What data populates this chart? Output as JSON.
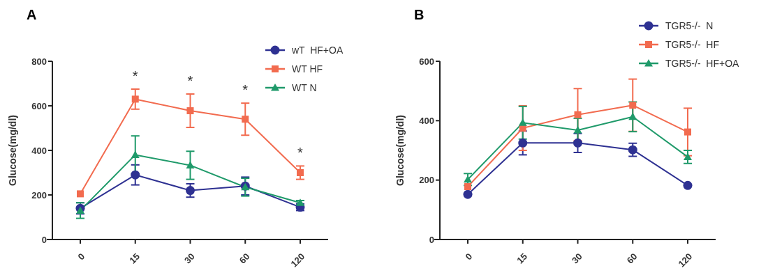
{
  "chart_data": [
    {
      "type": "line",
      "title": "A",
      "ylabel": "Glucose(mg/dl)",
      "categories": [
        "0",
        "15",
        "30",
        "60",
        "120"
      ],
      "ylim": [
        0,
        800
      ],
      "yticks": [
        0,
        200,
        400,
        600,
        800
      ],
      "legend": "top right",
      "series": [
        {
          "name": "wT  HF+OA",
          "color": "#2e3192",
          "marker": "circle",
          "values": [
            140,
            290,
            220,
            240,
            145
          ],
          "errors": [
            25,
            45,
            30,
            40,
            15
          ]
        },
        {
          "name": "WT HF",
          "color": "#f26b4f",
          "marker": "square",
          "values": [
            205,
            630,
            578,
            540,
            300
          ],
          "errors": [
            null,
            45,
            75,
            72,
            30
          ]
        },
        {
          "name": "WT N",
          "color": "#1f9a6a",
          "marker": "triangle",
          "values": [
            130,
            380,
            333,
            235,
            165
          ],
          "errors": [
            35,
            85,
            63,
            40,
            10
          ]
        }
      ],
      "annotations": [
        "*",
        "*",
        "*",
        "*"
      ]
    },
    {
      "type": "line",
      "title": "B",
      "ylabel": "Glucose(mg/dl)",
      "categories": [
        "0",
        "15",
        "30",
        "60",
        "120"
      ],
      "ylim": [
        0,
        600
      ],
      "yticks": [
        0,
        200,
        400,
        600
      ],
      "legend": "top right",
      "series": [
        {
          "name": "TGR5-/-  N",
          "color": "#2e3192",
          "marker": "circle",
          "values": [
            152,
            325,
            325,
            302,
            182
          ],
          "errors": [
            null,
            40,
            32,
            22,
            null
          ]
        },
        {
          "name": "TGR5-/-  HF",
          "color": "#f26b4f",
          "marker": "square",
          "values": [
            178,
            375,
            420,
            452,
            362
          ],
          "errors": [
            null,
            75,
            88,
            88,
            80
          ]
        },
        {
          "name": "TGR5-/-  HF+OA",
          "color": "#1f9a6a",
          "marker": "triangle",
          "values": [
            202,
            393,
            368,
            413,
            278
          ],
          "errors": [
            20,
            55,
            40,
            50,
            22
          ]
        }
      ]
    }
  ]
}
